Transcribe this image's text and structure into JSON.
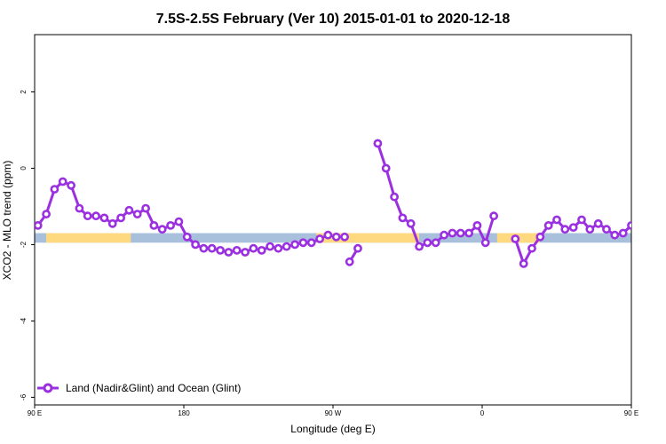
{
  "chart_data": {
    "type": "line",
    "title": "7.5S-2.5S February (Ver 10)   2015-01-01 to 2020-12-18",
    "xlabel": "Longitude (deg E)",
    "ylabel": "XCO2 - MLO trend (ppm)",
    "xlim": [
      90,
      450
    ],
    "ylim": [
      -6.2,
      3.5
    ],
    "x_ticks": [
      {
        "value": 90,
        "label": "90 E"
      },
      {
        "value": 180,
        "label": "180"
      },
      {
        "value": 270,
        "label": "90 W"
      },
      {
        "value": 360,
        "label": "0"
      },
      {
        "value": 450,
        "label": "90 E"
      },
      {
        "value": 540,
        "label": "180"
      }
    ],
    "y_ticks": [
      {
        "value": 2,
        "label": "2"
      },
      {
        "value": 0,
        "label": "0"
      },
      {
        "value": -2,
        "label": "-2"
      },
      {
        "value": -4,
        "label": "-4"
      },
      {
        "value": -6,
        "label": "-6"
      }
    ],
    "background_band": {
      "y_top": -1.7,
      "y_bottom": -1.95,
      "land_color": "#FFD980",
      "ocean_color": "#A8C0DC",
      "land_ranges": [
        [
          97,
          148
        ],
        [
          260,
          322
        ],
        [
          369,
          395
        ],
        [
          465,
          518
        ]
      ]
    },
    "series": [
      {
        "name": "Land (Nadir&Glint) and Ocean (Glint)",
        "color": "#9B30E0",
        "points": [
          [
            92,
            -1.5
          ],
          [
            97,
            -1.2
          ],
          [
            102,
            -0.55
          ],
          [
            107,
            -0.35
          ],
          [
            112,
            -0.45
          ],
          [
            117,
            -1.05
          ],
          [
            122,
            -1.25
          ],
          [
            127,
            -1.25
          ],
          [
            132,
            -1.3
          ],
          [
            137,
            -1.45
          ],
          [
            142,
            -1.3
          ],
          [
            147,
            -1.1
          ],
          [
            152,
            -1.2
          ],
          [
            157,
            -1.05
          ],
          [
            162,
            -1.5
          ],
          [
            167,
            -1.6
          ],
          [
            172,
            -1.5
          ],
          [
            177,
            -1.4
          ],
          [
            182,
            -1.8
          ],
          [
            187,
            -2.0
          ],
          [
            192,
            -2.1
          ],
          [
            197,
            -2.1
          ],
          [
            202,
            -2.15
          ],
          [
            207,
            -2.2
          ],
          [
            212,
            -2.15
          ],
          [
            217,
            -2.2
          ],
          [
            222,
            -2.1
          ],
          [
            227,
            -2.15
          ],
          [
            232,
            -2.05
          ],
          [
            237,
            -2.1
          ],
          [
            242,
            -2.05
          ],
          [
            247,
            -2.0
          ],
          [
            252,
            -1.95
          ],
          [
            257,
            -1.95
          ],
          [
            262,
            -1.85
          ],
          [
            267,
            -1.75
          ],
          [
            272,
            -1.8
          ],
          [
            277,
            -1.8
          ],
          null,
          [
            280,
            -2.45
          ],
          [
            285,
            -2.1
          ],
          null,
          [
            297,
            0.65
          ],
          [
            302,
            0.0
          ],
          [
            307,
            -0.75
          ],
          [
            312,
            -1.3
          ],
          [
            317,
            -1.45
          ],
          [
            322,
            -2.05
          ],
          [
            327,
            -1.95
          ],
          [
            332,
            -1.95
          ],
          [
            337,
            -1.75
          ],
          [
            342,
            -1.7
          ],
          [
            347,
            -1.7
          ],
          [
            352,
            -1.7
          ],
          [
            357,
            -1.5
          ],
          [
            362,
            -1.95
          ],
          [
            367,
            -1.25
          ],
          null,
          [
            380,
            -1.85
          ],
          [
            385,
            -2.5
          ],
          [
            390,
            -2.1
          ],
          [
            395,
            -1.8
          ],
          [
            400,
            -1.5
          ],
          [
            405,
            -1.35
          ],
          [
            410,
            -1.6
          ],
          [
            415,
            -1.55
          ],
          [
            420,
            -1.35
          ],
          [
            425,
            -1.6
          ],
          [
            430,
            -1.45
          ],
          [
            435,
            -1.6
          ],
          [
            440,
            -1.75
          ],
          [
            445,
            -1.7
          ],
          [
            450,
            -1.5
          ],
          [
            455,
            -1.2
          ],
          [
            460,
            -0.55
          ],
          [
            465,
            -0.35
          ],
          [
            470,
            -0.45
          ],
          [
            475,
            -1.05
          ],
          [
            480,
            -1.25
          ],
          [
            485,
            -1.25
          ],
          [
            490,
            -1.3
          ],
          [
            495,
            -1.45
          ],
          [
            500,
            -1.3
          ],
          [
            505,
            -1.15
          ],
          [
            510,
            -1.2
          ],
          [
            515,
            -1.1
          ],
          [
            520,
            -1.5
          ],
          [
            525,
            -1.6
          ],
          [
            530,
            -1.5
          ],
          [
            535,
            -1.4
          ]
        ]
      }
    ],
    "legend": {
      "position": "bottom-left"
    }
  }
}
